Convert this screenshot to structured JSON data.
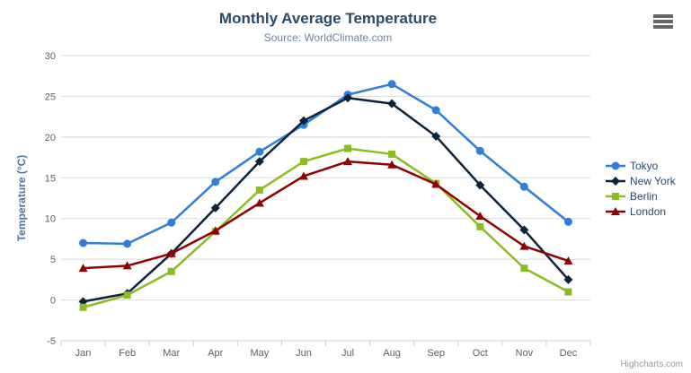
{
  "chart_data": {
    "type": "line",
    "title": "Monthly Average Temperature",
    "subtitle": "Source: WorldClimate.com",
    "xlabel": "",
    "ylabel": "Temperature (°C)",
    "categories": [
      "Jan",
      "Feb",
      "Mar",
      "Apr",
      "May",
      "Jun",
      "Jul",
      "Aug",
      "Sep",
      "Oct",
      "Nov",
      "Dec"
    ],
    "ylim": [
      -5,
      30
    ],
    "yticks": [
      -5,
      0,
      5,
      10,
      15,
      20,
      25,
      30
    ],
    "grid": true,
    "legend_position": "right",
    "series": [
      {
        "name": "Tokyo",
        "color": "#2f7ed8",
        "marker": "circle",
        "values": [
          7.0,
          6.9,
          9.5,
          14.5,
          18.2,
          21.5,
          25.2,
          26.5,
          23.3,
          18.3,
          13.9,
          9.6
        ]
      },
      {
        "name": "New York",
        "color": "#0d233a",
        "marker": "diamond",
        "values": [
          -0.2,
          0.8,
          5.7,
          11.3,
          17.0,
          22.0,
          24.8,
          24.1,
          20.1,
          14.1,
          8.6,
          2.5
        ]
      },
      {
        "name": "Berlin",
        "color": "#8bbc21",
        "marker": "square",
        "values": [
          -0.9,
          0.6,
          3.5,
          8.4,
          13.5,
          17.0,
          18.6,
          17.9,
          14.3,
          9.0,
          3.9,
          1.0
        ]
      },
      {
        "name": "London",
        "color": "#910000",
        "marker": "triangle",
        "values": [
          3.9,
          4.2,
          5.7,
          8.5,
          11.9,
          15.2,
          17.0,
          16.6,
          14.2,
          10.3,
          6.6,
          4.8
        ]
      }
    ]
  },
  "credits": "Highcharts.com",
  "icons": {
    "context_menu": "hamburger-menu-icon"
  },
  "colors": {
    "grid": "#d8d8d8",
    "axis_line": "#c0d0e0",
    "tick_label": "#606060",
    "title": "#274b6d",
    "subtitle": "#6d869f",
    "y_axis_title": "#4d759e",
    "legend_text": "#274b6d",
    "credits": "#999999",
    "menu_icon": "#666666"
  }
}
